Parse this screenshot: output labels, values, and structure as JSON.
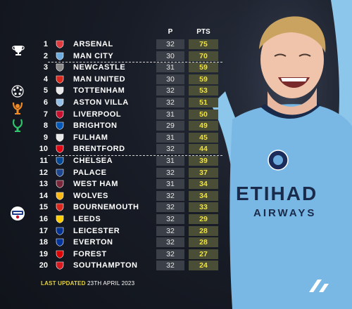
{
  "header": {
    "p_label": "P",
    "pts_label": "PTS"
  },
  "teams": [
    {
      "rank": "1",
      "name": "ARSENAL",
      "p": "32",
      "pts": "75",
      "crest": "#e03a3e"
    },
    {
      "rank": "2",
      "name": "MAN CITY",
      "p": "30",
      "pts": "70",
      "crest": "#6cabdd"
    },
    {
      "rank": "3",
      "name": "NEWCASTLE",
      "p": "31",
      "pts": "59",
      "crest": "#888888"
    },
    {
      "rank": "4",
      "name": "MAN UNITED",
      "p": "30",
      "pts": "59",
      "crest": "#da291c"
    },
    {
      "rank": "5",
      "name": "TOTTENHAM",
      "p": "32",
      "pts": "53",
      "crest": "#e8e8e8"
    },
    {
      "rank": "6",
      "name": "ASTON VILLA",
      "p": "32",
      "pts": "51",
      "crest": "#95bfe5"
    },
    {
      "rank": "7",
      "name": "LIVERPOOL",
      "p": "31",
      "pts": "50",
      "crest": "#c8102e"
    },
    {
      "rank": "8",
      "name": "BRIGHTON",
      "p": "29",
      "pts": "49",
      "crest": "#0057b8"
    },
    {
      "rank": "9",
      "name": "FULHAM",
      "p": "31",
      "pts": "45",
      "crest": "#e8e8e8"
    },
    {
      "rank": "10",
      "name": "BRENTFORD",
      "p": "32",
      "pts": "44",
      "crest": "#e30613"
    },
    {
      "rank": "11",
      "name": "CHELSEA",
      "p": "31",
      "pts": "39",
      "crest": "#034694"
    },
    {
      "rank": "12",
      "name": "PALACE",
      "p": "32",
      "pts": "37",
      "crest": "#1b458f"
    },
    {
      "rank": "13",
      "name": "WEST HAM",
      "p": "31",
      "pts": "34",
      "crest": "#7a263a"
    },
    {
      "rank": "14",
      "name": "WOLVES",
      "p": "32",
      "pts": "34",
      "crest": "#fdb913"
    },
    {
      "rank": "15",
      "name": "BOURNEMOUTH",
      "p": "32",
      "pts": "33",
      "crest": "#da291c"
    },
    {
      "rank": "16",
      "name": "LEEDS",
      "p": "32",
      "pts": "29",
      "crest": "#ffcd00"
    },
    {
      "rank": "17",
      "name": "LEICESTER",
      "p": "32",
      "pts": "28",
      "crest": "#003090"
    },
    {
      "rank": "18",
      "name": "EVERTON",
      "p": "32",
      "pts": "28",
      "crest": "#003399"
    },
    {
      "rank": "19",
      "name": "FOREST",
      "p": "32",
      "pts": "27",
      "crest": "#dd0000"
    },
    {
      "rank": "20",
      "name": "SOUTHAMPTON",
      "p": "32",
      "pts": "24",
      "crest": "#d71920"
    }
  ],
  "footer": {
    "label": "LAST UPDATED",
    "date": "23TH APRIL 2023"
  },
  "jersey": {
    "sponsor_line1": "ETIHAD",
    "sponsor_line2": "AIRWAYS"
  },
  "icons": [
    "trophy-icon",
    "champions-league-icon",
    "europa-league-icon",
    "conference-league-icon",
    "championship-relegation-icon"
  ],
  "colors": {
    "background": "#141820",
    "points_text": "#f1e23a",
    "footer_label": "#e4d23c",
    "jersey": "#6cabdd"
  }
}
